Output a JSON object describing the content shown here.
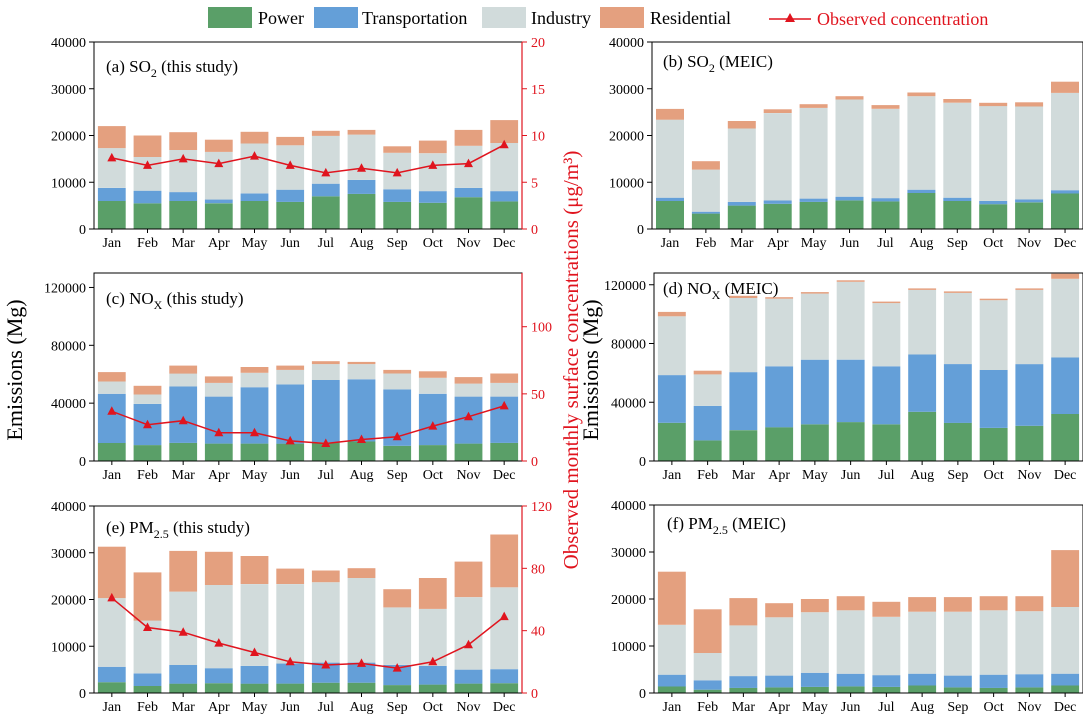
{
  "figure": {
    "left_axis_label": "Emissions (Mg)",
    "right_axis_label": "Observed monthly surface concentrations (μg/m³)",
    "mid_axis_label": "Emissions (Mg)"
  },
  "legend": {
    "items": [
      {
        "label": "Power",
        "color": "#5a9f68"
      },
      {
        "label": "Transportation",
        "color": "#649fd8"
      },
      {
        "label": "Industry",
        "color": "#d1dbdb"
      },
      {
        "label": "Residential",
        "color": "#e4a07f"
      }
    ],
    "line_label": "Observed concentration",
    "line_color": "#e0141e"
  },
  "chart_data": [
    {
      "id": "a",
      "type": "bar",
      "stacked": true,
      "title": "(a) SO₂ (this study)",
      "categories": [
        "Jan",
        "Feb",
        "Mar",
        "Apr",
        "May",
        "Jun",
        "Jul",
        "Aug",
        "Sep",
        "Oct",
        "Nov",
        "Dec"
      ],
      "ylim": [
        0,
        40000
      ],
      "yticks": [
        0,
        10000,
        20000,
        30000,
        40000
      ],
      "series": [
        {
          "name": "Power",
          "values": [
            6000,
            5500,
            6000,
            5500,
            6000,
            5800,
            7000,
            7500,
            5800,
            5600,
            6800,
            5900
          ]
        },
        {
          "name": "Transportation",
          "values": [
            2800,
            2700,
            1900,
            800,
            1600,
            2600,
            2700,
            3000,
            2700,
            2500,
            2000,
            2200
          ]
        },
        {
          "name": "Industry",
          "values": [
            8500,
            7200,
            9000,
            10200,
            10700,
            9500,
            10200,
            9700,
            7800,
            8100,
            9000,
            10300
          ]
        },
        {
          "name": "Residential",
          "values": [
            4700,
            4600,
            3800,
            2600,
            2500,
            1800,
            1100,
            1000,
            1400,
            2700,
            3400,
            4900
          ]
        }
      ],
      "line": {
        "name": "Observed concentration",
        "ylim": [
          0,
          20
        ],
        "yticks": [
          0,
          5,
          10,
          15,
          20
        ],
        "values": [
          7.6,
          6.8,
          7.5,
          7.0,
          7.8,
          6.8,
          6.0,
          6.5,
          6.0,
          6.8,
          7.0,
          9.0
        ]
      }
    },
    {
      "id": "b",
      "type": "bar",
      "stacked": true,
      "title": "(b) SO₂ (MEIC)",
      "categories": [
        "Jan",
        "Feb",
        "Mar",
        "Apr",
        "May",
        "Jun",
        "Jul",
        "Aug",
        "Sep",
        "Oct",
        "Nov",
        "Dec"
      ],
      "ylim": [
        0,
        40000
      ],
      "yticks": [
        0,
        10000,
        20000,
        30000,
        40000
      ],
      "series": [
        {
          "name": "Power",
          "values": [
            6000,
            3300,
            5000,
            5400,
            5800,
            6100,
            5900,
            7700,
            6000,
            5300,
            5700,
            7600
          ]
        },
        {
          "name": "Transportation",
          "values": [
            700,
            400,
            800,
            700,
            700,
            800,
            700,
            700,
            700,
            700,
            600,
            700
          ]
        },
        {
          "name": "Industry",
          "values": [
            16700,
            9000,
            15700,
            18700,
            19400,
            20800,
            19100,
            20000,
            20300,
            20300,
            19900,
            20800
          ]
        },
        {
          "name": "Residential",
          "values": [
            2300,
            1800,
            1600,
            800,
            800,
            700,
            800,
            800,
            800,
            700,
            900,
            2400
          ]
        }
      ]
    },
    {
      "id": "c",
      "type": "bar",
      "stacked": true,
      "title": "(c) NOX (this study)",
      "categories": [
        "Jan",
        "Feb",
        "Mar",
        "Apr",
        "May",
        "Jun",
        "Jul",
        "Aug",
        "Sep",
        "Oct",
        "Nov",
        "Dec"
      ],
      "ylim": [
        0,
        130000
      ],
      "yticks": [
        0,
        40000,
        80000,
        120000
      ],
      "series": [
        {
          "name": "Power",
          "values": [
            12500,
            11000,
            12500,
            12000,
            12000,
            12000,
            13000,
            13500,
            10500,
            11000,
            12000,
            12500
          ]
        },
        {
          "name": "Transportation",
          "values": [
            34000,
            28500,
            39000,
            32500,
            39000,
            41000,
            43000,
            43000,
            39000,
            35500,
            32500,
            32000
          ]
        },
        {
          "name": "Industry",
          "values": [
            8500,
            6500,
            9000,
            9500,
            10000,
            10000,
            11000,
            10500,
            11000,
            11000,
            9000,
            9500
          ]
        },
        {
          "name": "Residential",
          "values": [
            6500,
            6000,
            5500,
            4500,
            4000,
            3000,
            2000,
            1500,
            2500,
            4500,
            4500,
            6500
          ]
        }
      ],
      "line": {
        "name": "Observed concentration",
        "ylim": [
          0,
          140
        ],
        "yticks": [
          0,
          50,
          100
        ],
        "values": [
          37,
          27,
          30,
          21,
          21,
          15,
          13,
          16,
          18,
          26,
          33,
          41
        ]
      }
    },
    {
      "id": "d",
      "type": "bar",
      "stacked": true,
      "title": "(d) NOX (MEIC)",
      "categories": [
        "Jan",
        "Feb",
        "Mar",
        "Apr",
        "May",
        "Jun",
        "Jul",
        "Aug",
        "Sep",
        "Oct",
        "Nov",
        "Dec"
      ],
      "ylim": [
        0,
        128000
      ],
      "yticks": [
        0,
        40000,
        80000,
        120000
      ],
      "series": [
        {
          "name": "Power",
          "values": [
            26000,
            14000,
            21000,
            23000,
            25000,
            26500,
            25000,
            33500,
            26000,
            22500,
            24000,
            32000
          ]
        },
        {
          "name": "Transportation",
          "values": [
            32500,
            23500,
            39500,
            41500,
            44000,
            42500,
            39500,
            39000,
            40000,
            39500,
            42000,
            38500
          ]
        },
        {
          "name": "Industry",
          "values": [
            40000,
            21500,
            50500,
            46000,
            45000,
            53000,
            43000,
            44000,
            48500,
            47500,
            50500,
            53500
          ]
        },
        {
          "name": "Residential",
          "values": [
            3000,
            2500,
            1500,
            1000,
            1000,
            1000,
            1000,
            1000,
            1000,
            1000,
            1000,
            3500
          ]
        }
      ]
    },
    {
      "id": "e",
      "type": "bar",
      "stacked": true,
      "title": "(e) PM2.5 (this study)",
      "categories": [
        "Jan",
        "Feb",
        "Mar",
        "Apr",
        "May",
        "Jun",
        "Jul",
        "Aug",
        "Sep",
        "Oct",
        "Nov",
        "Dec"
      ],
      "ylim": [
        0,
        40000
      ],
      "yticks": [
        0,
        10000,
        20000,
        30000,
        40000
      ],
      "series": [
        {
          "name": "Power",
          "values": [
            2300,
            1500,
            2000,
            2100,
            2000,
            2000,
            2200,
            2200,
            1700,
            1800,
            2000,
            2100
          ]
        },
        {
          "name": "Transportation",
          "values": [
            3300,
            2700,
            4000,
            3200,
            3800,
            4300,
            4300,
            4300,
            4300,
            4000,
            3000,
            3000
          ]
        },
        {
          "name": "Industry",
          "values": [
            14700,
            11300,
            15700,
            17800,
            17500,
            17000,
            17200,
            18100,
            12300,
            12200,
            15500,
            17500
          ]
        },
        {
          "name": "Residential",
          "values": [
            11000,
            10300,
            8700,
            7100,
            6000,
            3300,
            2500,
            2100,
            3900,
            6600,
            7600,
            11300
          ]
        }
      ],
      "line": {
        "name": "Observed concentration",
        "ylim": [
          0,
          120
        ],
        "yticks": [
          0,
          40,
          80,
          120
        ],
        "values": [
          61,
          42,
          39,
          32,
          26,
          20,
          18,
          19,
          16,
          20,
          31,
          49
        ]
      }
    },
    {
      "id": "f",
      "type": "bar",
      "stacked": true,
      "title": "(f) PM2.5 (MEIC)",
      "categories": [
        "Jan",
        "Feb",
        "Mar",
        "Apr",
        "May",
        "Jun",
        "Jul",
        "Aug",
        "Sep",
        "Oct",
        "Nov",
        "Dec"
      ],
      "ylim": [
        0,
        40000
      ],
      "yticks": [
        0,
        10000,
        20000,
        30000,
        40000
      ],
      "series": [
        {
          "name": "Power",
          "values": [
            1400,
            700,
            1100,
            1200,
            1300,
            1400,
            1300,
            1600,
            1200,
            1100,
            1200,
            1600
          ]
        },
        {
          "name": "Transportation",
          "values": [
            2500,
            2000,
            2500,
            2500,
            3000,
            2700,
            2500,
            2500,
            2500,
            2800,
            2800,
            2500
          ]
        },
        {
          "name": "Industry",
          "values": [
            10600,
            5800,
            10800,
            12400,
            12900,
            13500,
            12400,
            13200,
            13600,
            13700,
            13400,
            14200
          ]
        },
        {
          "name": "Residential",
          "values": [
            11300,
            9300,
            5800,
            3000,
            2800,
            3000,
            3200,
            3100,
            3100,
            3000,
            3200,
            12100
          ]
        }
      ]
    }
  ]
}
